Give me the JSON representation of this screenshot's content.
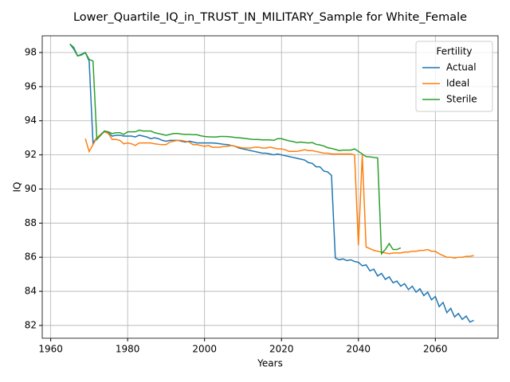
{
  "chart_data": {
    "type": "line",
    "title": "Lower_Quartile_IQ_in_TRUST_IN_MILITARY_Sample for White_Female",
    "x_label": "Years",
    "y_label": "IQ",
    "legend_title": "Fertility",
    "legend": "upper right",
    "grid": true,
    "xlim": [
      1957.8,
      2076.3
    ],
    "ylim": [
      81.25,
      98.98
    ],
    "xticks": [
      1960,
      1980,
      2000,
      2020,
      2040,
      2060
    ],
    "yticks": [
      82,
      84,
      86,
      88,
      90,
      92,
      94,
      96,
      98
    ],
    "x": [
      1965,
      1966,
      1967,
      1968,
      1969,
      1970,
      1971,
      1972,
      1973,
      1974,
      1975,
      1976,
      1977,
      1978,
      1979,
      1980,
      1981,
      1982,
      1983,
      1984,
      1985,
      1986,
      1987,
      1988,
      1989,
      1990,
      1991,
      1992,
      1993,
      1994,
      1995,
      1996,
      1997,
      1998,
      1999,
      2000,
      2001,
      2002,
      2003,
      2004,
      2005,
      2006,
      2007,
      2008,
      2009,
      2010,
      2011,
      2012,
      2013,
      2014,
      2015,
      2016,
      2017,
      2018,
      2019,
      2020,
      2021,
      2022,
      2023,
      2024,
      2025,
      2026,
      2027,
      2028,
      2029,
      2030,
      2031,
      2032,
      2033,
      2034,
      2035,
      2036,
      2037,
      2038,
      2039,
      2040,
      2041,
      2042,
      2043,
      2044,
      2045,
      2046,
      2047,
      2048,
      2049,
      2050,
      2051,
      2052,
      2053,
      2054,
      2055,
      2056,
      2057,
      2058,
      2059,
      2060,
      2061,
      2062,
      2063,
      2064,
      2065,
      2066,
      2067,
      2068,
      2069,
      2070
    ],
    "series": [
      {
        "name": "Actual",
        "color": "#1f77b4",
        "values": [
          98.5,
          98.2,
          97.8,
          97.9,
          98.0,
          97.5,
          92.7,
          93.0,
          93.2,
          93.4,
          93.3,
          93.1,
          93.15,
          93.15,
          93.1,
          93.1,
          93.1,
          93.05,
          93.15,
          93.1,
          93.05,
          92.95,
          93.0,
          92.95,
          92.85,
          92.8,
          92.85,
          92.85,
          92.85,
          92.8,
          92.75,
          92.8,
          92.75,
          92.7,
          92.7,
          92.7,
          92.7,
          92.7,
          92.68,
          92.65,
          92.62,
          92.6,
          92.55,
          92.5,
          92.4,
          92.35,
          92.3,
          92.25,
          92.2,
          92.15,
          92.1,
          92.1,
          92.05,
          92.0,
          92.05,
          92.0,
          91.95,
          91.9,
          91.85,
          91.8,
          91.75,
          91.7,
          91.55,
          91.5,
          91.3,
          91.3,
          91.05,
          91.0,
          90.8,
          85.95,
          85.85,
          85.9,
          85.8,
          85.85,
          85.75,
          85.7,
          85.5,
          85.55,
          85.2,
          85.3,
          84.9,
          85.05,
          84.7,
          84.85,
          84.5,
          84.6,
          84.3,
          84.45,
          84.1,
          84.3,
          83.95,
          84.15,
          83.75,
          83.95,
          83.5,
          83.7,
          83.1,
          83.35,
          82.75,
          83.0,
          82.5,
          82.7,
          82.35,
          82.55,
          82.2,
          82.3
        ]
      },
      {
        "name": "Ideal",
        "color": "#ff7f0e",
        "values": [
          null,
          null,
          null,
          null,
          92.95,
          92.2,
          92.6,
          93.0,
          93.2,
          93.35,
          93.25,
          92.9,
          92.9,
          92.85,
          92.65,
          92.7,
          92.65,
          92.55,
          92.7,
          92.7,
          92.7,
          92.7,
          92.65,
          92.62,
          92.6,
          92.6,
          92.75,
          92.8,
          92.85,
          92.85,
          92.8,
          92.75,
          92.6,
          92.6,
          92.55,
          92.5,
          92.55,
          92.45,
          92.45,
          92.45,
          92.5,
          92.5,
          92.55,
          92.5,
          92.45,
          92.4,
          92.4,
          92.4,
          92.45,
          92.45,
          92.4,
          92.4,
          92.45,
          92.4,
          92.35,
          92.35,
          92.3,
          92.2,
          92.2,
          92.2,
          92.25,
          92.3,
          92.25,
          92.25,
          92.2,
          92.15,
          92.1,
          92.1,
          92.05,
          92.05,
          92.05,
          92.05,
          92.05,
          92.05,
          92.0,
          86.7,
          92.0,
          86.6,
          86.5,
          86.4,
          86.35,
          86.3,
          86.25,
          86.2,
          86.25,
          86.25,
          86.25,
          86.3,
          86.3,
          86.35,
          86.35,
          86.4,
          86.4,
          86.45,
          86.35,
          86.35,
          86.2,
          86.1,
          86.0,
          86.0,
          85.95,
          86.0,
          86.0,
          86.05,
          86.05,
          86.1
        ]
      },
      {
        "name": "Sterile",
        "color": "#2ca02c",
        "values": [
          98.5,
          98.3,
          97.8,
          97.85,
          98.0,
          97.6,
          97.5,
          92.9,
          93.15,
          93.4,
          93.35,
          93.25,
          93.3,
          93.3,
          93.2,
          93.35,
          93.35,
          93.35,
          93.45,
          93.4,
          93.4,
          93.4,
          93.3,
          93.25,
          93.2,
          93.15,
          93.2,
          93.25,
          93.25,
          93.22,
          93.2,
          93.2,
          93.18,
          93.18,
          93.12,
          93.08,
          93.06,
          93.05,
          93.05,
          93.08,
          93.08,
          93.07,
          93.05,
          93.02,
          93.0,
          92.98,
          92.95,
          92.92,
          92.9,
          92.9,
          92.88,
          92.88,
          92.88,
          92.85,
          92.95,
          92.95,
          92.88,
          92.82,
          92.78,
          92.72,
          92.75,
          92.72,
          92.7,
          92.72,
          92.62,
          92.58,
          92.52,
          92.42,
          92.38,
          92.32,
          92.25,
          92.28,
          92.28,
          92.28,
          92.35,
          92.2,
          92.05,
          91.9,
          91.88,
          91.85,
          91.82,
          86.2,
          86.45,
          86.8,
          86.45,
          86.45,
          86.55,
          null,
          null,
          null,
          null,
          null,
          null,
          null,
          null,
          null,
          null,
          null,
          null,
          null,
          null,
          null,
          null,
          null,
          null,
          null
        ]
      }
    ]
  }
}
